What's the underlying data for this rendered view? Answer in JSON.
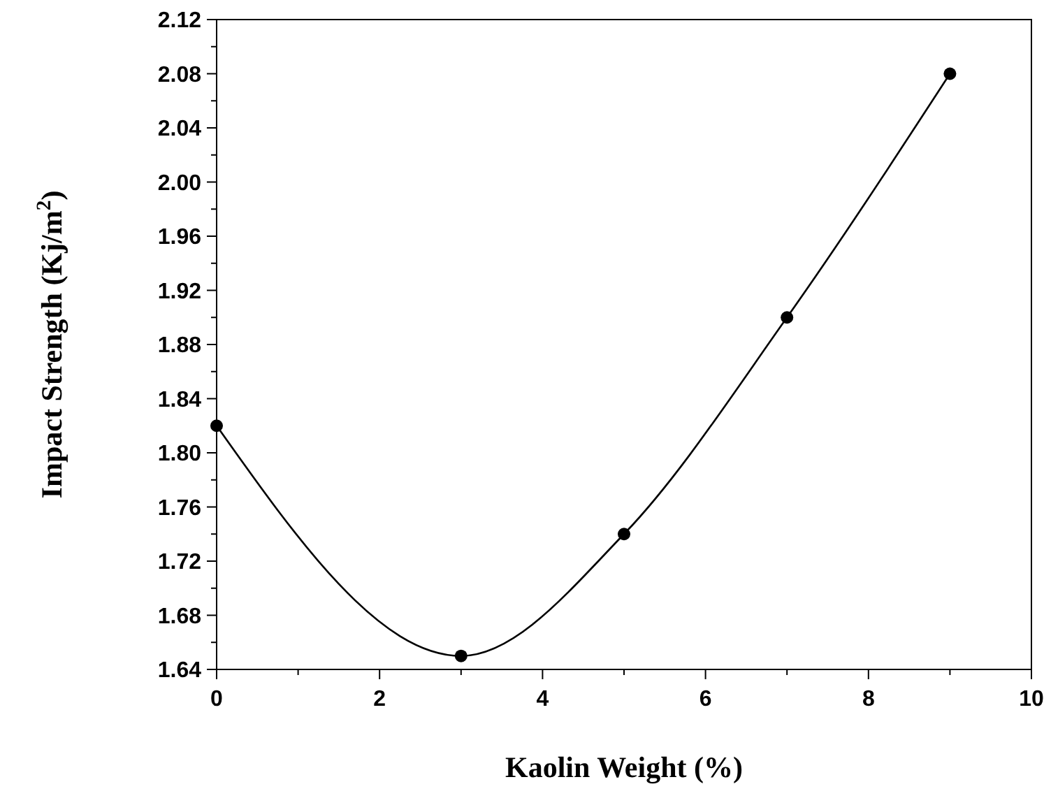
{
  "chart_data": {
    "type": "line",
    "xlabel": "Kaolin Weight (%)",
    "ylabel": "Impact Strength (Kj/m$^{2}$)",
    "x": [
      0,
      3,
      5,
      7,
      9
    ],
    "series": [
      {
        "color": "#000000",
        "values": [
          1.82,
          1.65,
          1.74,
          1.9,
          2.08
        ]
      }
    ],
    "xlim": [
      0,
      10
    ],
    "xticks": [
      0,
      {
        "value": 1,
        "label": null
      },
      2,
      {
        "value": 3,
        "label": null
      },
      4,
      {
        "value": 5,
        "label": null
      },
      6,
      {
        "value": 7,
        "label": null
      },
      8,
      {
        "value": 9,
        "label": null
      },
      10
    ],
    "ylim": [
      1.64,
      2.12
    ],
    "yticks": [
      {
        "value": 1.64,
        "label": "1.64"
      },
      {
        "value": 1.66,
        "label": null
      },
      {
        "value": 1.68,
        "label": "1.68"
      },
      {
        "value": 1.7,
        "label": null
      },
      {
        "value": 1.72,
        "label": "1.72"
      },
      {
        "value": 1.74,
        "label": null
      },
      {
        "value": 1.76,
        "label": "1.76"
      },
      {
        "value": 1.78,
        "label": null
      },
      {
        "value": 1.8,
        "label": "1.80"
      },
      {
        "value": 1.82,
        "label": null
      },
      {
        "value": 1.84,
        "label": "1.84"
      },
      {
        "value": 1.86,
        "label": null
      },
      {
        "value": 1.88,
        "label": "1.88"
      },
      {
        "value": 1.9,
        "label": null
      },
      {
        "value": 1.92,
        "label": "1.92"
      },
      {
        "value": 1.94,
        "label": null
      },
      {
        "value": 1.96,
        "label": "1.96"
      },
      {
        "value": 1.98,
        "label": null
      },
      {
        "value": 2.0,
        "label": "2.00"
      },
      {
        "value": 2.02,
        "label": null
      },
      {
        "value": 2.04,
        "label": "2.04"
      },
      {
        "value": 2.06,
        "label": null
      },
      {
        "value": 2.08,
        "label": "2.08"
      },
      {
        "value": 2.1,
        "label": null
      },
      {
        "value": 2.12,
        "label": "2.12"
      }
    ],
    "marker": "circle",
    "line_style": "solid"
  }
}
